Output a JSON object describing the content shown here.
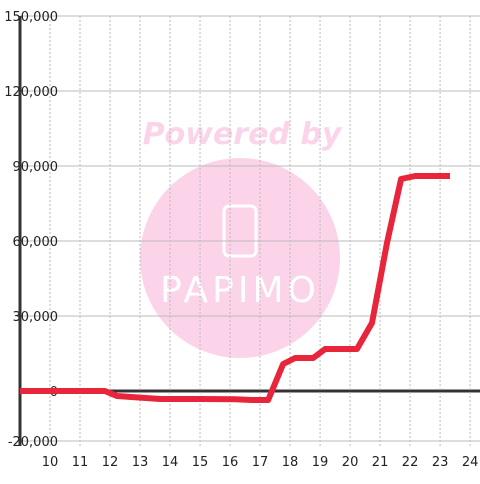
{
  "chart_data": {
    "type": "line",
    "x": [
      9,
      11.5,
      11.83,
      12.23,
      12.83,
      13.67,
      15,
      16.17,
      16.73,
      17.27,
      17.77,
      18.17,
      18.77,
      19.17,
      19.77,
      20.23,
      20.73,
      21.23,
      21.7,
      22.17,
      23.33
    ],
    "series": [
      {
        "color": "#e8253a",
        "values": [
          0,
          0,
          0,
          -2000,
          -2500,
          -3200,
          -3200,
          -3300,
          -3600,
          -3600,
          10800,
          13200,
          13200,
          16800,
          16800,
          16800,
          27200,
          59200,
          84800,
          86000,
          86000
        ]
      }
    ],
    "xlim": [
      9,
      24.33
    ],
    "xticks": [
      10,
      11,
      12,
      13,
      14,
      15,
      16,
      17,
      18,
      19,
      20,
      21,
      22,
      23,
      24
    ],
    "ylim": [
      -22000,
      150000
    ],
    "yticks": [
      {
        "value": -20000,
        "label": "-20,000"
      },
      0,
      {
        "value": 30000,
        "label": "30,000"
      },
      {
        "value": 60000,
        "label": "60,000"
      },
      {
        "value": 90000,
        "label": "90,000"
      },
      {
        "value": 120000,
        "label": "120,000"
      },
      {
        "value": 150000,
        "label": "150,000"
      }
    ],
    "grid": true,
    "watermark": [
      "Powered by",
      "PAPIMO"
    ]
  }
}
